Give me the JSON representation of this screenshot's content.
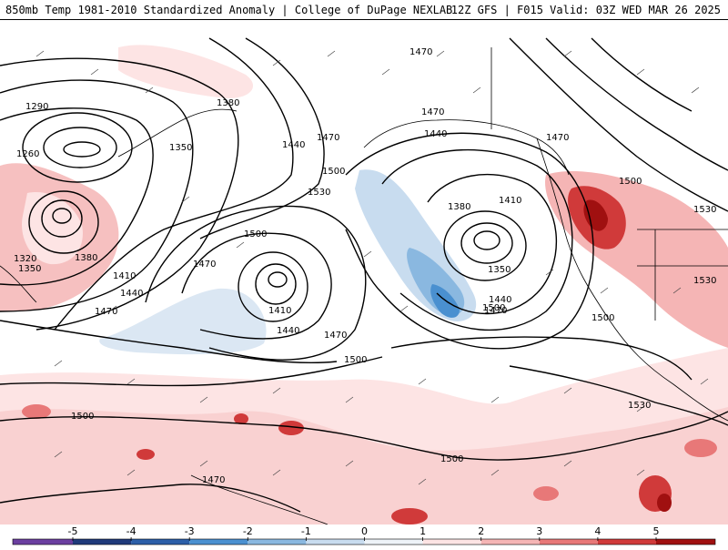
{
  "header": {
    "title_left": "850mb Temp 1981-2010 Standardized Anomaly | College of DuPage NEXLAB",
    "title_right": "12Z GFS | F015 Valid: 03Z WED MAR 26 2025"
  },
  "contour_labels": [
    "1290",
    "1260",
    "1380",
    "1350",
    "1320",
    "1350",
    "1380",
    "1410",
    "1440",
    "1470",
    "1470",
    "1440",
    "1470",
    "1500",
    "1530",
    "1500",
    "1470",
    "1410",
    "1440",
    "1470",
    "1500",
    "1470",
    "1440",
    "1410",
    "1380",
    "1350",
    "1470",
    "1440",
    "1530",
    "1500",
    "1470",
    "1500",
    "1530",
    "1530",
    "1500",
    "1500",
    "1500",
    "1470"
  ],
  "colorbar": {
    "ticks": [
      "-5",
      "-4",
      "-3",
      "-2",
      "-1",
      "0",
      "1",
      "2",
      "3",
      "4",
      "5"
    ],
    "colors": [
      "#6b3fa0",
      "#1f3a7a",
      "#2c5fa8",
      "#4a90d0",
      "#8ab8e0",
      "#c8dcef",
      "#eef3f8",
      "#fde4e4",
      "#f5b5b5",
      "#e87878",
      "#d03a3a",
      "#a01010",
      "#f0c020"
    ]
  }
}
